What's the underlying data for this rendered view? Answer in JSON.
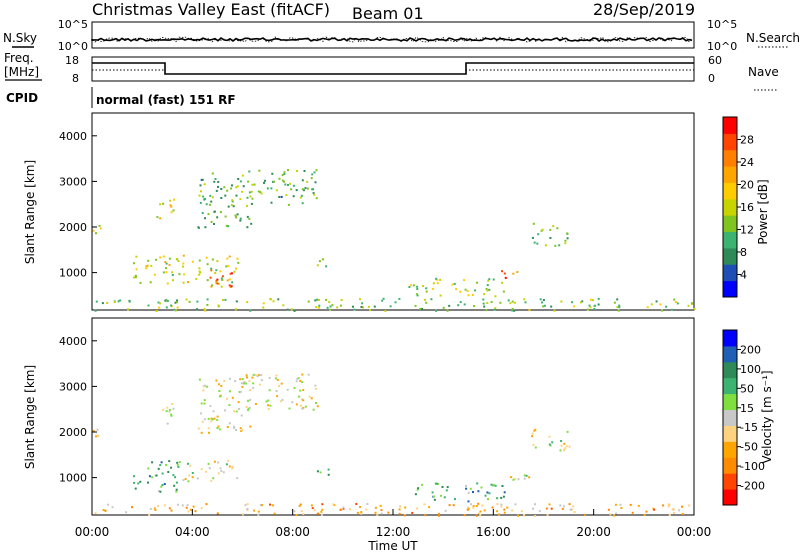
{
  "header": {
    "title": "Christmas Valley East (fitACF)",
    "beam": "Beam 01",
    "date": "28/Sep/2019"
  },
  "top_panels": {
    "nsky_label": "N.Sky",
    "nsky_ticks": [
      "10^5",
      "10^0"
    ],
    "nsearch_label": "N.Search",
    "nsearch_ticks": [
      "10^5",
      "10^0"
    ],
    "freq_label_1": "Freq.",
    "freq_label_2": "[MHz]",
    "freq_ticks": [
      "18",
      "8"
    ],
    "nave_label": "Nave",
    "nave_ticks": [
      "60",
      "0"
    ],
    "cpid_label": "CPID",
    "cpid_text": "normal (fast) 151 RF"
  },
  "chart_data": [
    {
      "type": "heatmap",
      "name": "power",
      "ylabel": "Slant Range [km]",
      "yticks": [
        1000,
        2000,
        3000,
        4000
      ],
      "ylim": [
        180,
        4500
      ],
      "xlim": [
        0,
        24
      ],
      "colorbar_label": "Power [dB]",
      "colorbar_ticks": [
        "4",
        "8",
        "12",
        "16",
        "20",
        "24",
        "28"
      ],
      "colorbar_colors": [
        "#0000ff",
        "#1f4fb4",
        "#2e8b57",
        "#3cb371",
        "#7fc41f",
        "#c8d400",
        "#ffcc00",
        "#ffa500",
        "#ff7f00",
        "#ff4500",
        "#ff0000"
      ],
      "regions": [
        {
          "t0": 0.0,
          "t1": 0.4,
          "r0": 1850,
          "r1": 2250,
          "level": 0.45
        },
        {
          "t0": 1.6,
          "t1": 5.8,
          "r0": 700,
          "r1": 1400,
          "level": 0.5
        },
        {
          "t0": 4.6,
          "t1": 5.6,
          "r0": 700,
          "r1": 1100,
          "level": 0.85
        },
        {
          "t0": 2.5,
          "t1": 3.3,
          "r0": 2200,
          "r1": 2700,
          "level": 0.5
        },
        {
          "t0": 4.2,
          "t1": 6.5,
          "r0": 2000,
          "r1": 3200,
          "level": 0.35
        },
        {
          "t0": 6.0,
          "t1": 9.0,
          "r0": 2500,
          "r1": 3300,
          "level": 0.35
        },
        {
          "t0": 8.9,
          "t1": 9.4,
          "r0": 1050,
          "r1": 1350,
          "level": 0.45
        },
        {
          "t0": 12.6,
          "t1": 16.5,
          "r0": 500,
          "r1": 900,
          "level": 0.45
        },
        {
          "t0": 16.0,
          "t1": 17.0,
          "r0": 900,
          "r1": 1100,
          "level": 0.8
        },
        {
          "t0": 0.0,
          "t1": 24.0,
          "r0": 180,
          "r1": 450,
          "level": 0.4
        },
        {
          "t0": 17.5,
          "t1": 19.0,
          "r0": 1600,
          "r1": 2100,
          "level": 0.35
        }
      ]
    },
    {
      "type": "heatmap",
      "name": "velocity",
      "xlabel": "Time UT",
      "ylabel": "Slant Range [km]",
      "xticks": [
        "00:00",
        "04:00",
        "08:00",
        "12:00",
        "16:00",
        "20:00",
        "00:00"
      ],
      "yticks": [
        1000,
        2000,
        3000,
        4000
      ],
      "ylim": [
        180,
        4500
      ],
      "xlim": [
        0,
        24
      ],
      "colorbar_label": "Velocity [m s⁻¹]",
      "colorbar_ticks": [
        "-200",
        "-100",
        "-50",
        "-15",
        "15",
        "50",
        "100",
        "200"
      ],
      "colorbar_colors": [
        "#ff0000",
        "#ff4500",
        "#ff8c00",
        "#ffa500",
        "#ffd27f",
        "#c8c8c8",
        "#7fdf3f",
        "#3cb371",
        "#2e8b57",
        "#1f5fb4",
        "#0000ff"
      ],
      "regions": [
        {
          "t0": 0.0,
          "t1": 0.4,
          "r0": 1850,
          "r1": 2250,
          "level": 0.5
        },
        {
          "t0": 1.6,
          "t1": 3.6,
          "r0": 700,
          "r1": 1400,
          "level": 0.7
        },
        {
          "t0": 3.6,
          "t1": 5.8,
          "r0": 900,
          "r1": 1400,
          "level": 0.5
        },
        {
          "t0": 2.5,
          "t1": 3.3,
          "r0": 2200,
          "r1": 2700,
          "level": 0.5
        },
        {
          "t0": 4.2,
          "t1": 6.5,
          "r0": 2000,
          "r1": 3200,
          "level": 0.45
        },
        {
          "t0": 6.0,
          "t1": 9.0,
          "r0": 2500,
          "r1": 3300,
          "level": 0.45
        },
        {
          "t0": 8.9,
          "t1": 9.4,
          "r0": 1050,
          "r1": 1350,
          "level": 0.75
        },
        {
          "t0": 12.6,
          "t1": 16.5,
          "r0": 500,
          "r1": 900,
          "level": 0.7
        },
        {
          "t0": 16.0,
          "t1": 17.5,
          "r0": 900,
          "r1": 1100,
          "level": 0.5
        },
        {
          "t0": 0.0,
          "t1": 24.0,
          "r0": 180,
          "r1": 450,
          "level": 0.35
        },
        {
          "t0": 17.5,
          "t1": 19.0,
          "r0": 1600,
          "r1": 2100,
          "level": 0.5
        }
      ]
    }
  ]
}
